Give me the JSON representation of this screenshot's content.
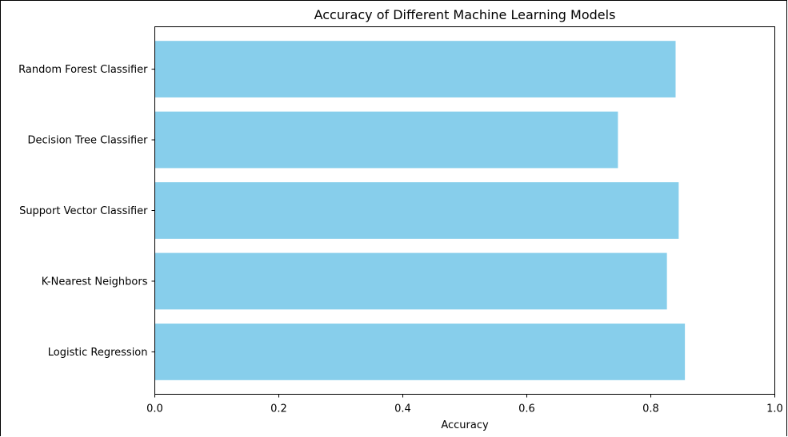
{
  "chart_data": {
    "type": "bar",
    "orientation": "horizontal",
    "title": "Accuracy of Different Machine Learning Models",
    "xlabel": "Accuracy",
    "ylabel": "",
    "xlim": [
      0,
      1.0
    ],
    "xticks": [
      "0.0",
      "0.2",
      "0.4",
      "0.6",
      "0.8",
      "1.0"
    ],
    "categories": [
      "Logistic Regression",
      "K-Nearest Neighbors",
      "Support Vector Classifier",
      "Decision Tree Classifier",
      "Random Forest Classifier"
    ],
    "values": [
      0.855,
      0.826,
      0.845,
      0.747,
      0.84
    ],
    "bar_color": "#87ceeb",
    "grid": false
  }
}
